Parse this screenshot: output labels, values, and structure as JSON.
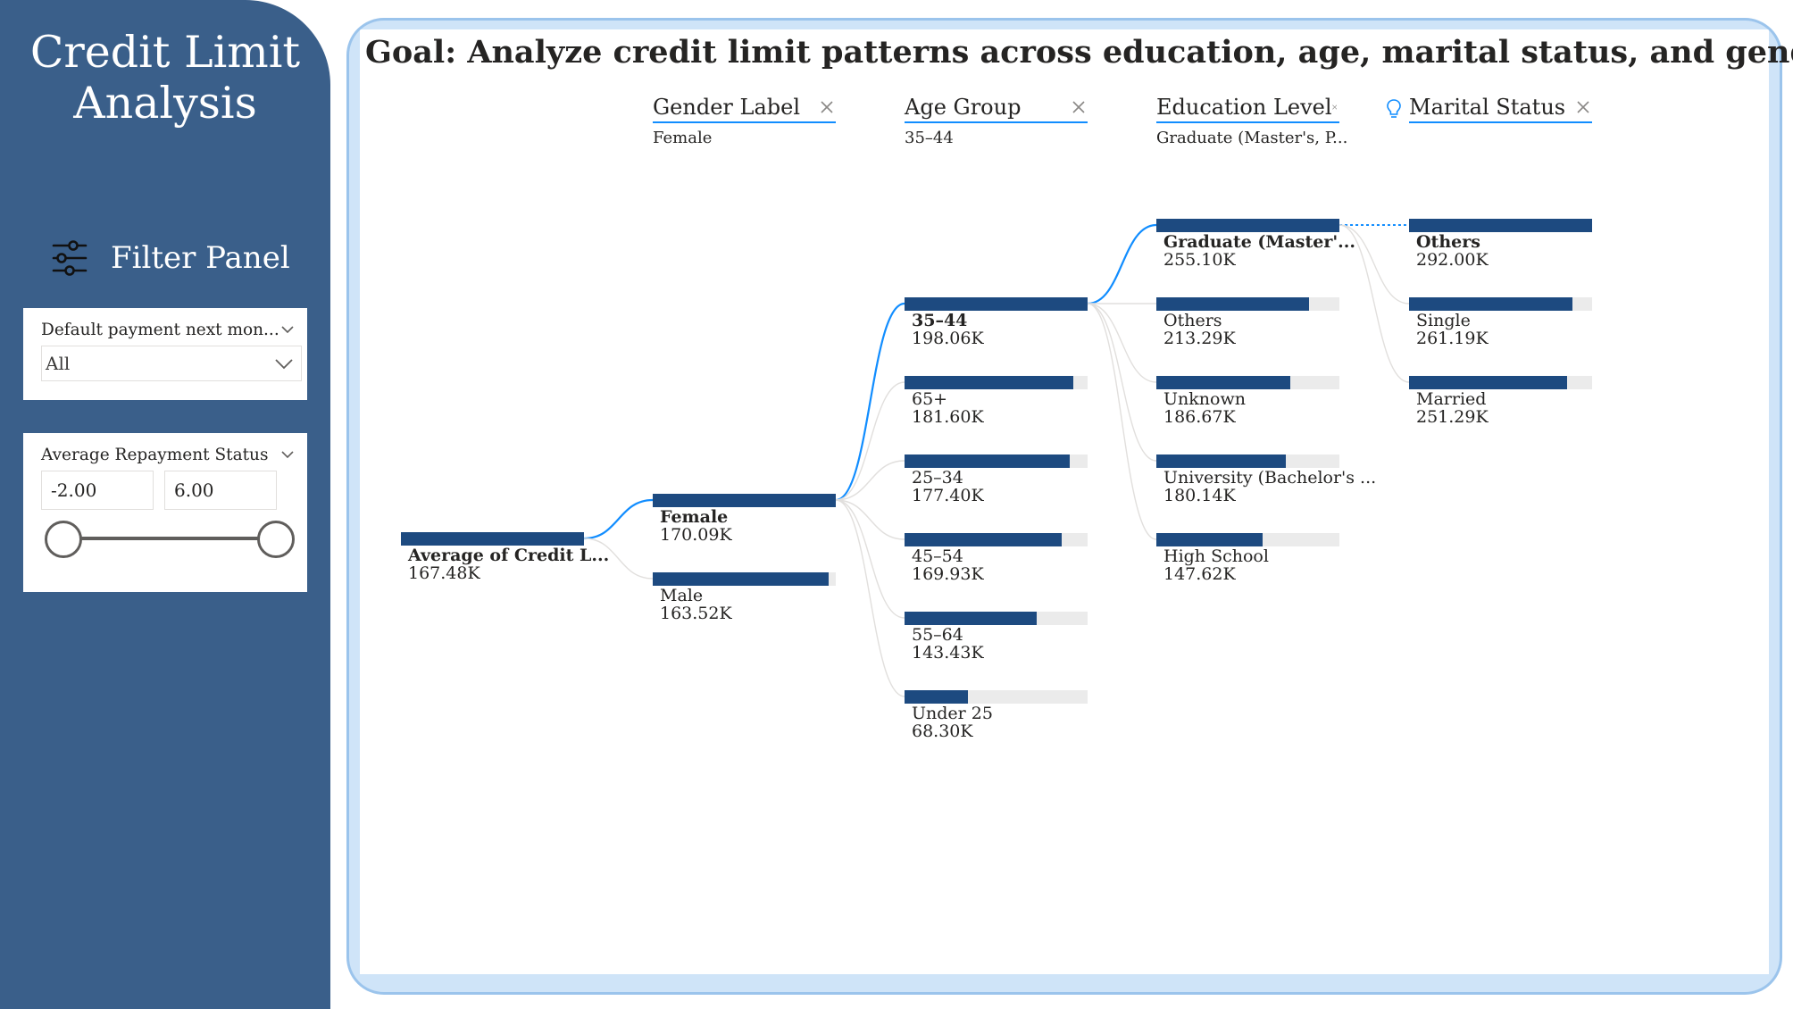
{
  "sidebar": {
    "title_line1": "Credit Limit",
    "title_line2": "Analysis",
    "filter_panel_label": "Filter Panel",
    "icon": "sliders-icon",
    "slicers": [
      {
        "title": "Default payment next mon...",
        "selected": "All"
      },
      {
        "title": "Average Repayment Status",
        "min": "-2.00",
        "max": "6.00"
      }
    ]
  },
  "main": {
    "goal": "Goal: Analyze credit limit patterns across education, age, marital status, and gender",
    "levels": [
      {
        "name": "Gender Label",
        "selected": "Female"
      },
      {
        "name": "Age Group",
        "selected": "35–44"
      },
      {
        "name": "Education Level",
        "selected": "Graduate (Master's, P..."
      },
      {
        "name": "Marital Status",
        "selected": ""
      }
    ],
    "root": {
      "label": "Average of Credit L...",
      "value": "167.48K",
      "fraction": 1.0
    },
    "gender": [
      {
        "label": "Female",
        "value": "170.09K",
        "fraction": 1.0
      },
      {
        "label": "Male",
        "value": "163.52K",
        "fraction": 0.96
      }
    ],
    "age": [
      {
        "label": "35–44",
        "value": "198.06K",
        "fraction": 1.0
      },
      {
        "label": "65+",
        "value": "181.60K",
        "fraction": 0.92
      },
      {
        "label": "25–34",
        "value": "177.40K",
        "fraction": 0.9
      },
      {
        "label": "45–54",
        "value": "169.93K",
        "fraction": 0.86
      },
      {
        "label": "55–64",
        "value": "143.43K",
        "fraction": 0.72
      },
      {
        "label": "Under 25",
        "value": "68.30K",
        "fraction": 0.345
      }
    ],
    "education": [
      {
        "label": "Graduate (Master'...",
        "value": "255.10K",
        "fraction": 1.0
      },
      {
        "label": "Others",
        "value": "213.29K",
        "fraction": 0.836
      },
      {
        "label": "Unknown",
        "value": "186.67K",
        "fraction": 0.732
      },
      {
        "label": "University (Bachelor's ...",
        "value": "180.14K",
        "fraction": 0.706
      },
      {
        "label": "High School",
        "value": "147.62K",
        "fraction": 0.579
      }
    ],
    "marital": [
      {
        "label": "Others",
        "value": "292.00K",
        "fraction": 1.0
      },
      {
        "label": "Single",
        "value": "261.19K",
        "fraction": 0.894
      },
      {
        "label": "Married",
        "value": "251.29K",
        "fraction": 0.861
      }
    ]
  },
  "colors": {
    "sidebar": "#3a5f8a",
    "bar": "#1d4a80",
    "accent": "#118dff",
    "card_border": "#9bc4ec"
  }
}
